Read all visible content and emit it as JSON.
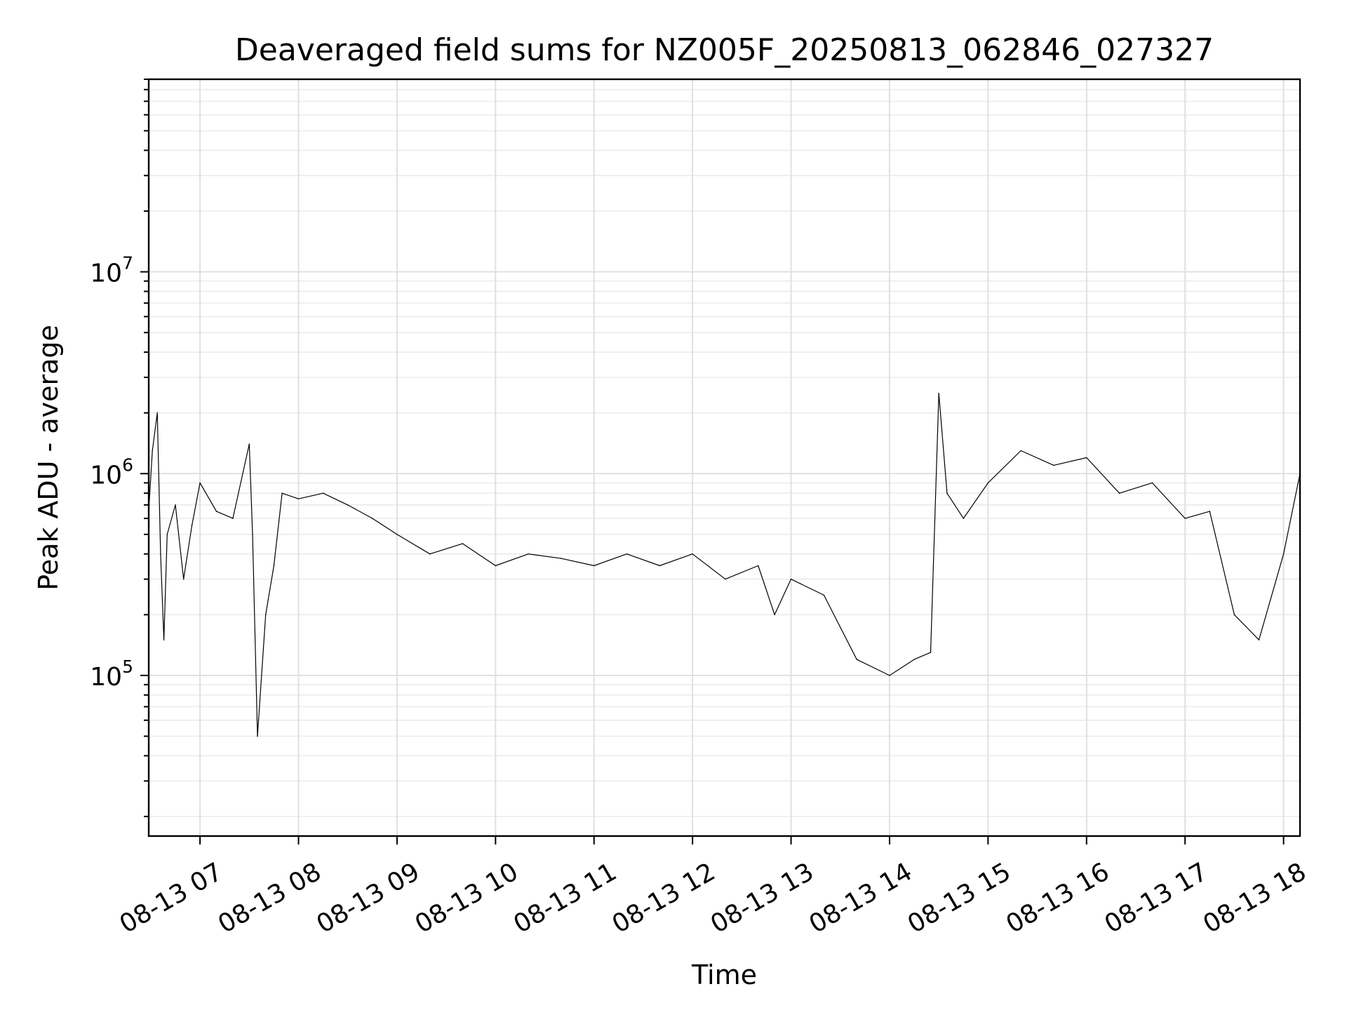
{
  "chart_data": {
    "type": "line",
    "title": "Deaveraged field sums for NZ005F_20250813_062846_027327",
    "xlabel": "Time",
    "ylabel": "Peak ADU - average",
    "yscale": "log",
    "grid": true,
    "xlim": [
      "2025-08-13 06:28:46",
      "2025-08-13 18:10:00"
    ],
    "ylim": [
      16000,
      90000000
    ],
    "x_ticks": [
      {
        "value": "2025-08-13 07:00",
        "label": "08-13 07"
      },
      {
        "value": "2025-08-13 08:00",
        "label": "08-13 08"
      },
      {
        "value": "2025-08-13 09:00",
        "label": "08-13 09"
      },
      {
        "value": "2025-08-13 10:00",
        "label": "08-13 10"
      },
      {
        "value": "2025-08-13 11:00",
        "label": "08-13 11"
      },
      {
        "value": "2025-08-13 12:00",
        "label": "08-13 12"
      },
      {
        "value": "2025-08-13 13:00",
        "label": "08-13 13"
      },
      {
        "value": "2025-08-13 14:00",
        "label": "08-13 14"
      },
      {
        "value": "2025-08-13 15:00",
        "label": "08-13 15"
      },
      {
        "value": "2025-08-13 16:00",
        "label": "08-13 16"
      },
      {
        "value": "2025-08-13 17:00",
        "label": "08-13 17"
      },
      {
        "value": "2025-08-13 18:00",
        "label": "08-13 18"
      }
    ],
    "y_ticks": [
      {
        "value": 100000,
        "base": "10",
        "exp": "5"
      },
      {
        "value": 1000000,
        "base": "10",
        "exp": "6"
      },
      {
        "value": 10000000,
        "base": "10",
        "exp": "7"
      }
    ],
    "series": [
      {
        "color": "#000000",
        "x": [
          "2025-08-13 06:29",
          "2025-08-13 06:31",
          "2025-08-13 06:34",
          "2025-08-13 06:36",
          "2025-08-13 06:38",
          "2025-08-13 06:40",
          "2025-08-13 06:45",
          "2025-08-13 06:50",
          "2025-08-13 06:55",
          "2025-08-13 07:00",
          "2025-08-13 07:10",
          "2025-08-13 07:20",
          "2025-08-13 07:30",
          "2025-08-13 07:32",
          "2025-08-13 07:35",
          "2025-08-13 07:40",
          "2025-08-13 07:45",
          "2025-08-13 07:50",
          "2025-08-13 08:00",
          "2025-08-13 08:15",
          "2025-08-13 08:30",
          "2025-08-13 08:45",
          "2025-08-13 09:00",
          "2025-08-13 09:20",
          "2025-08-13 09:40",
          "2025-08-13 10:00",
          "2025-08-13 10:20",
          "2025-08-13 10:40",
          "2025-08-13 11:00",
          "2025-08-13 11:20",
          "2025-08-13 11:40",
          "2025-08-13 12:00",
          "2025-08-13 12:20",
          "2025-08-13 12:40",
          "2025-08-13 12:50",
          "2025-08-13 13:00",
          "2025-08-13 13:20",
          "2025-08-13 13:40",
          "2025-08-13 14:00",
          "2025-08-13 14:15",
          "2025-08-13 14:25",
          "2025-08-13 14:30",
          "2025-08-13 14:35",
          "2025-08-13 14:45",
          "2025-08-13 15:00",
          "2025-08-13 15:20",
          "2025-08-13 15:40",
          "2025-08-13 16:00",
          "2025-08-13 16:20",
          "2025-08-13 16:40",
          "2025-08-13 17:00",
          "2025-08-13 17:15",
          "2025-08-13 17:30",
          "2025-08-13 17:45",
          "2025-08-13 18:00",
          "2025-08-13 18:10"
        ],
        "y": [
          700000,
          1300000,
          2000000,
          400000,
          150000,
          500000,
          700000,
          300000,
          550000,
          900000,
          650000,
          600000,
          1400000,
          500000,
          50000,
          200000,
          350000,
          800000,
          750000,
          800000,
          700000,
          600000,
          500000,
          400000,
          450000,
          350000,
          400000,
          380000,
          350000,
          400000,
          350000,
          400000,
          300000,
          350000,
          200000,
          300000,
          250000,
          120000,
          100000,
          120000,
          130000,
          2500000,
          800000,
          600000,
          900000,
          1300000,
          1100000,
          1200000,
          800000,
          900000,
          600000,
          650000,
          200000,
          150000,
          400000,
          1000000
        ]
      }
    ]
  }
}
